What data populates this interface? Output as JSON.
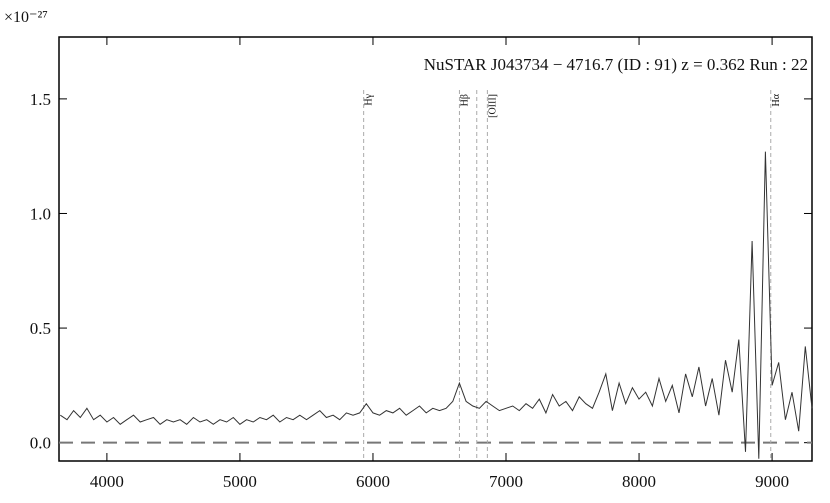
{
  "chart_data": {
    "type": "line",
    "title": "NuSTAR J043734 − 4716.7 (ID : 91)   z = 0.362   Run : 22",
    "y_scale_label": "×10⁻²⁷",
    "x": [
      3650,
      3700,
      3750,
      3800,
      3850,
      3900,
      3950,
      4000,
      4050,
      4100,
      4150,
      4200,
      4250,
      4300,
      4350,
      4400,
      4450,
      4500,
      4550,
      4600,
      4650,
      4700,
      4750,
      4800,
      4850,
      4900,
      4950,
      5000,
      5050,
      5100,
      5150,
      5200,
      5250,
      5300,
      5350,
      5400,
      5450,
      5500,
      5550,
      5600,
      5650,
      5700,
      5750,
      5800,
      5850,
      5900,
      5950,
      6000,
      6050,
      6100,
      6150,
      6200,
      6250,
      6300,
      6350,
      6400,
      6450,
      6500,
      6550,
      6600,
      6650,
      6700,
      6750,
      6800,
      6850,
      6900,
      6950,
      7000,
      7050,
      7100,
      7150,
      7200,
      7250,
      7300,
      7350,
      7400,
      7450,
      7500,
      7550,
      7600,
      7650,
      7700,
      7750,
      7800,
      7850,
      7900,
      7950,
      8000,
      8050,
      8100,
      8150,
      8200,
      8250,
      8300,
      8350,
      8400,
      8450,
      8500,
      8550,
      8600,
      8650,
      8700,
      8750,
      8800,
      8850,
      8900,
      8950,
      9000,
      9050,
      9100,
      9150,
      9200,
      9250,
      9300
    ],
    "values": [
      0.12,
      0.1,
      0.14,
      0.11,
      0.15,
      0.1,
      0.12,
      0.09,
      0.11,
      0.08,
      0.1,
      0.12,
      0.09,
      0.1,
      0.11,
      0.08,
      0.1,
      0.09,
      0.1,
      0.08,
      0.11,
      0.09,
      0.1,
      0.08,
      0.1,
      0.09,
      0.11,
      0.08,
      0.1,
      0.09,
      0.11,
      0.1,
      0.12,
      0.09,
      0.11,
      0.1,
      0.12,
      0.1,
      0.12,
      0.14,
      0.11,
      0.12,
      0.1,
      0.13,
      0.12,
      0.13,
      0.17,
      0.13,
      0.12,
      0.14,
      0.13,
      0.15,
      0.12,
      0.14,
      0.16,
      0.13,
      0.15,
      0.14,
      0.15,
      0.18,
      0.26,
      0.18,
      0.16,
      0.15,
      0.18,
      0.16,
      0.14,
      0.15,
      0.16,
      0.14,
      0.17,
      0.15,
      0.19,
      0.13,
      0.21,
      0.16,
      0.18,
      0.14,
      0.2,
      0.17,
      0.15,
      0.22,
      0.3,
      0.14,
      0.26,
      0.17,
      0.24,
      0.19,
      0.22,
      0.16,
      0.28,
      0.18,
      0.25,
      0.13,
      0.3,
      0.2,
      0.33,
      0.16,
      0.28,
      0.12,
      0.36,
      0.22,
      0.45,
      -0.04,
      0.88,
      -0.07,
      1.27,
      0.25,
      0.35,
      0.1,
      0.22,
      0.05,
      0.42,
      0.15
    ],
    "color": "#333333",
    "xlim": [
      3640,
      9300
    ],
    "ylim": [
      -0.08,
      1.77
    ],
    "xticks": [
      4000,
      5000,
      6000,
      7000,
      8000,
      9000
    ],
    "yticks": [
      {
        "value": 0,
        "label": "0.0"
      },
      0.5,
      {
        "value": 1,
        "label": "1.0"
      },
      1.5
    ],
    "zero_line": 0,
    "line_markers": [
      {
        "x": 5930,
        "label": "Hγ"
      },
      {
        "x": 6650,
        "label": "Hβ"
      },
      {
        "x": 6780
      },
      {
        "x": 6860,
        "label": "[OIII]"
      },
      {
        "x": 8990,
        "label": "Hα"
      }
    ]
  }
}
